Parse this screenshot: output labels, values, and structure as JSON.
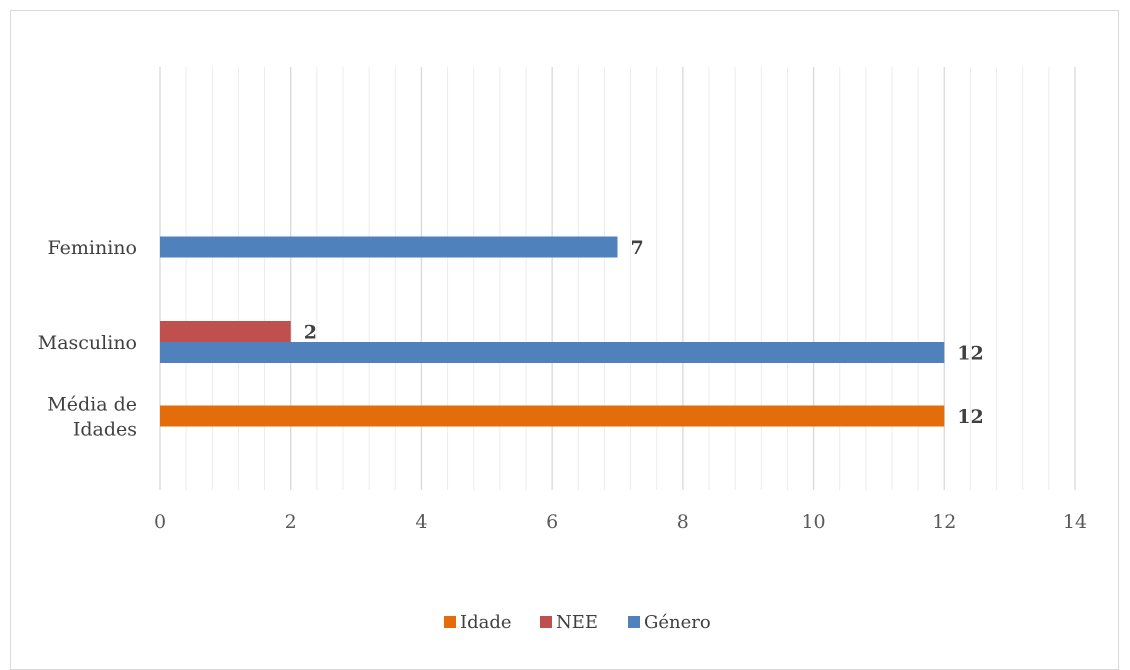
{
  "chart_data": {
    "type": "bar",
    "orientation": "horizontal",
    "categories": [
      "Média de Idades",
      "Masculino",
      "Feminino"
    ],
    "category_label_lines": [
      [
        "Média de",
        "Idades"
      ],
      [
        "Masculino"
      ],
      [
        "Feminino"
      ]
    ],
    "series": [
      {
        "name": "Idade",
        "color": "#E46C0A",
        "values": [
          12,
          null,
          null
        ]
      },
      {
        "name": "NEE",
        "color": "#C0504D",
        "values": [
          null,
          2,
          null
        ]
      },
      {
        "name": "Género",
        "color": "#4F81BD",
        "values": [
          null,
          12,
          7
        ]
      }
    ],
    "data_labels": true,
    "xlim": [
      0,
      14
    ],
    "x_ticks": [
      "0",
      "2",
      "4",
      "6",
      "8",
      "10",
      "12",
      "14"
    ],
    "major_step": 2,
    "minor_step": 0.4,
    "grid": "vertical major and minor",
    "legend": [
      "Idade",
      "NEE",
      "Género"
    ],
    "legend_position": "bottom",
    "title": "",
    "xlabel": "",
    "ylabel": ""
  }
}
